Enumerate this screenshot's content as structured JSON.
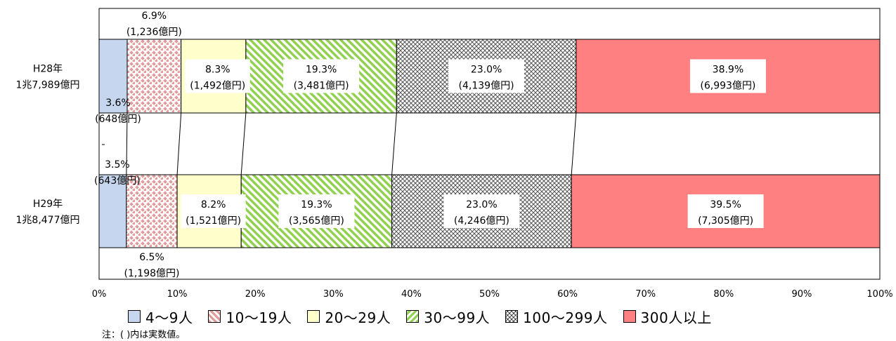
{
  "chart_data": {
    "type": "bar",
    "orientation": "horizontal",
    "stacked": true,
    "normalized": true,
    "categories": [
      "H28年\n1兆7,989億円",
      "H29年\n1兆8,477億円"
    ],
    "series": [
      {
        "name": "4〜9人",
        "values": [
          3.6,
          3.5
        ],
        "labels": [
          "3.6%\n(648億円)",
          "3.5%\n(643億円)"
        ],
        "fill": "#c5d6ee"
      },
      {
        "name": "10〜19人",
        "values": [
          6.9,
          6.5
        ],
        "labels": [
          "6.9%\n(1,236億円)",
          "6.5%\n(1,198億円)"
        ],
        "fill": "#e29a9a"
      },
      {
        "name": "20〜29人",
        "values": [
          8.3,
          8.2
        ],
        "labels": [
          "8.3%\n(1,492億円)",
          "8.2%\n(1,521億円)"
        ],
        "fill": "#ffffcc"
      },
      {
        "name": "30〜99人",
        "values": [
          19.3,
          19.3
        ],
        "labels": [
          "19.3%\n(3,481億円)",
          "19.3%\n(3,565億円)"
        ],
        "fill": "#92d050"
      },
      {
        "name": "100〜299人",
        "values": [
          23.0,
          23.0
        ],
        "labels": [
          "23.0%\n(4,139億円)",
          "23.0%\n(4,246億円)"
        ],
        "fill": "#7f7f7f"
      },
      {
        "name": "300人以上",
        "values": [
          38.9,
          39.5
        ],
        "labels": [
          "38.9%\n(6,993億円)",
          "39.5%\n(7,305億円)"
        ],
        "fill": "#ff8080"
      }
    ],
    "xlim": [
      0,
      100
    ],
    "xticks": [
      "0%",
      "10%",
      "20%",
      "30%",
      "40%",
      "50%",
      "60%",
      "70%",
      "80%",
      "90%",
      "100%"
    ],
    "legend_position": "bottom",
    "note": "注：( )内は実数値。"
  }
}
